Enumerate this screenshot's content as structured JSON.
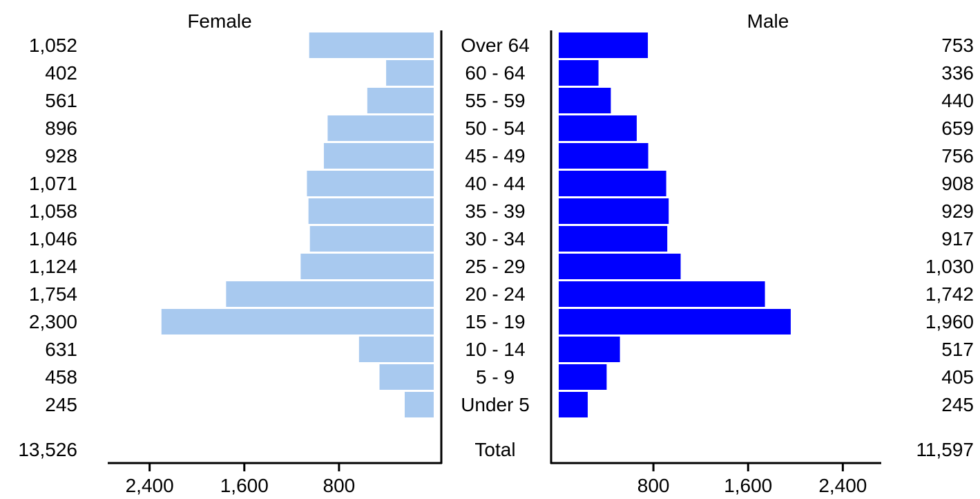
{
  "chart_data": {
    "type": "bar",
    "subtype": "population-pyramid",
    "categories": [
      "Over 64",
      "60 - 64",
      "55 - 59",
      "50 - 54",
      "45 - 49",
      "40 - 44",
      "35 - 39",
      "30 - 34",
      "25 - 29",
      "20 - 24",
      "15 - 19",
      "10 - 14",
      "5 - 9",
      "Under 5"
    ],
    "series": [
      {
        "name": "Female",
        "side": "left",
        "color": "#a8c9ef",
        "values": [
          1052,
          402,
          561,
          896,
          928,
          1071,
          1058,
          1046,
          1124,
          1754,
          2300,
          631,
          458,
          245
        ],
        "value_labels": [
          "1,052",
          "402",
          "561",
          "896",
          "928",
          "1,071",
          "1,058",
          "1,046",
          "1,124",
          "1,754",
          "2,300",
          "631",
          "458",
          "245"
        ],
        "total": 13526,
        "total_label": "13,526"
      },
      {
        "name": "Male",
        "side": "right",
        "color": "#0000ff",
        "values": [
          753,
          336,
          440,
          659,
          756,
          908,
          929,
          917,
          1030,
          1742,
          1960,
          517,
          405,
          245
        ],
        "value_labels": [
          "753",
          "336",
          "440",
          "659",
          "756",
          "908",
          "929",
          "917",
          "1,030",
          "1,742",
          "1,960",
          "517",
          "405",
          "245"
        ],
        "total": 11597,
        "total_label": "11,597"
      }
    ],
    "total_label": "Total",
    "x_ticks": [
      800,
      1600,
      2400
    ],
    "x_tick_labels": [
      "800",
      "1,600",
      "2,400"
    ],
    "xlim": [
      0,
      2750
    ],
    "grid": false,
    "legend": "none"
  }
}
